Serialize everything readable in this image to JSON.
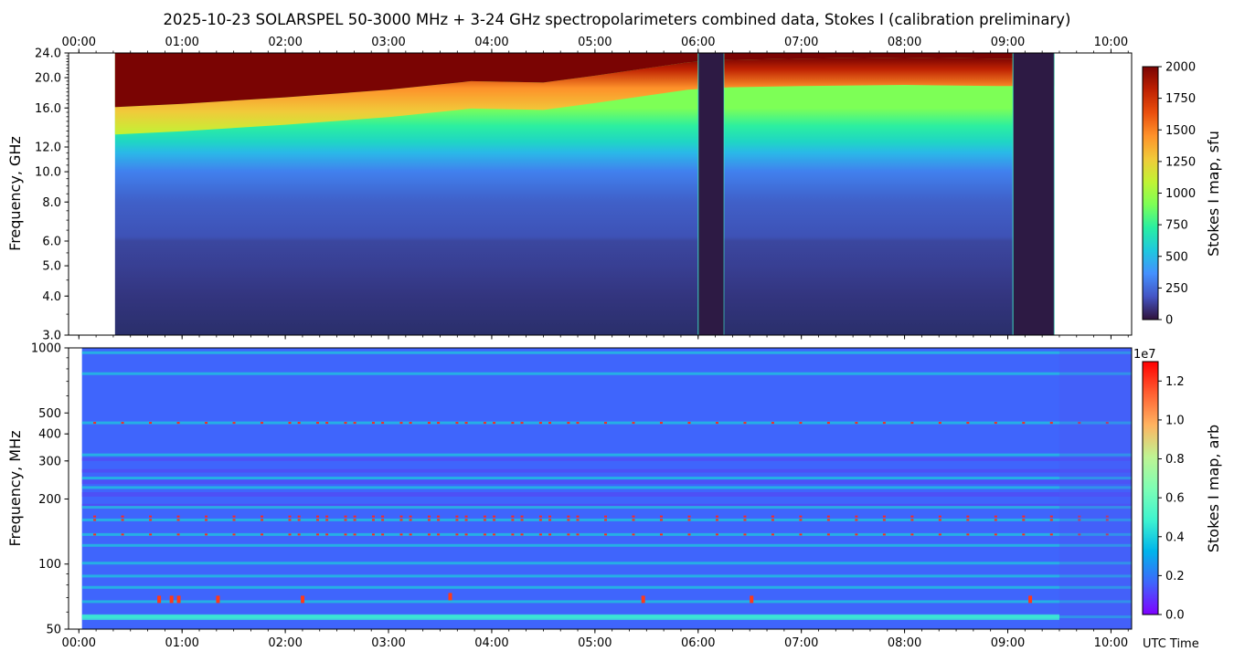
{
  "title": "2025-10-23  SOLARSPEL  50-3000 MHz  +  3-24 GHz  spectropolarimeters combined data,  Stokes I  (calibration preliminary)",
  "time_ticks": [
    "00:00",
    "01:00",
    "02:00",
    "03:00",
    "04:00",
    "05:00",
    "06:00",
    "07:00",
    "08:00",
    "09:00",
    "10:00"
  ],
  "x_axis_label": "UTC Time",
  "colors": {
    "turbo_ramp": [
      "#30123b",
      "#4454c4",
      "#4490fe",
      "#1fc8de",
      "#29efa2",
      "#7dff56",
      "#c1f334",
      "#f1ca3a",
      "#fe922a",
      "#ea4f0d",
      "#be2102",
      "#7a0403"
    ],
    "rainbow_ramp": [
      "#7f00ff",
      "#3f65fc",
      "#00b4eb",
      "#3ff4cf",
      "#7ffeb4",
      "#c0f392",
      "#ffb360",
      "#ff5f31",
      "#ff0000"
    ]
  },
  "chart_data": [
    {
      "type": "heatmap",
      "panel": "top",
      "ylabel": "Frequency, GHz",
      "y_scale": "log",
      "ylim": [
        3.0,
        24.0
      ],
      "y_ticks": [
        "3.0",
        "4.0",
        "5.0",
        "6.0",
        "8.0",
        "10.0",
        "12.0",
        "16.0",
        "20.0",
        "24.0"
      ],
      "xlim_hours": [
        -0.1,
        10.2
      ],
      "data_start_hours": 0.35,
      "data_end_hours": 9.45,
      "colorbar": {
        "label": "Stokes I map, sfu",
        "range": [
          0,
          2000
        ],
        "ticks": [
          "0",
          "250",
          "500",
          "750",
          "1000",
          "1250",
          "1500",
          "1750",
          "2000"
        ]
      },
      "saturation_boundary_GHz": {
        "hours": [
          0.35,
          1.0,
          2.0,
          3.0,
          3.8,
          4.5,
          5.0,
          5.9,
          6.3,
          7.0,
          8.0,
          8.9
        ],
        "freq": [
          16.1,
          16.5,
          17.3,
          18.3,
          19.5,
          19.3,
          20.3,
          22.4,
          22.8,
          23.0,
          23.2,
          23.0
        ]
      },
      "data_gaps_hours": [
        [
          6.0,
          6.25
        ],
        [
          9.05,
          9.45
        ]
      ]
    },
    {
      "type": "heatmap",
      "panel": "bottom",
      "ylabel": "Frequency, MHz",
      "y_scale": "log",
      "ylim": [
        50,
        1000
      ],
      "y_ticks": [
        "50",
        "100",
        "200",
        "300",
        "400",
        "500",
        "1000"
      ],
      "xlim_hours": [
        -0.1,
        10.2
      ],
      "data_start_hours": 0.03,
      "colorbar": {
        "label": "Stokes I map, arb",
        "range": [
          0,
          1.3
        ],
        "multiplier": "1e7",
        "ticks": [
          "0.0",
          "0.2",
          "0.4",
          "0.6",
          "0.8",
          "1.0",
          "1.2"
        ]
      },
      "background_level": 0.2,
      "bright_bands_MHz": [
        57,
        67,
        78,
        88,
        101,
        122,
        137,
        160,
        183,
        226,
        250,
        320,
        450,
        760,
        950
      ],
      "rfi_lines_MHz": [
        160,
        166,
        137,
        450
      ]
    }
  ]
}
